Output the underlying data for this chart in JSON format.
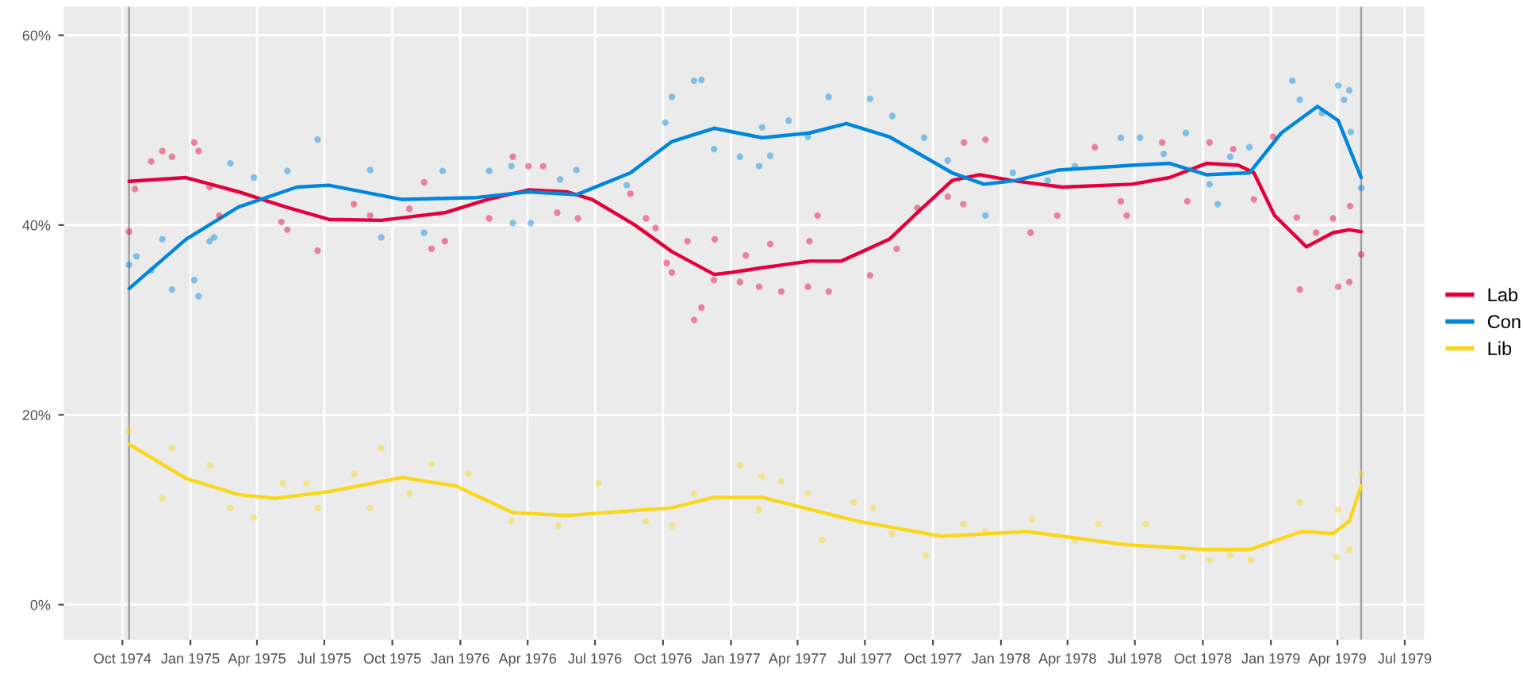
{
  "chart_data": {
    "type": "line",
    "xlim": [
      "1974-07-14",
      "1979-07-27"
    ],
    "xticks": [
      {
        "value": "1974-10-01",
        "label": "Oct 1974"
      },
      {
        "value": "1975-01-01",
        "label": "Jan 1975"
      },
      {
        "value": "1975-04-01",
        "label": "Apr 1975"
      },
      {
        "value": "1975-07-01",
        "label": "Jul 1975"
      },
      {
        "value": "1975-10-01",
        "label": "Oct 1975"
      },
      {
        "value": "1976-01-01",
        "label": "Jan 1976"
      },
      {
        "value": "1976-04-01",
        "label": "Apr 1976"
      },
      {
        "value": "1976-07-01",
        "label": "Jul 1976"
      },
      {
        "value": "1976-10-01",
        "label": "Oct 1976"
      },
      {
        "value": "1977-01-01",
        "label": "Jan 1977"
      },
      {
        "value": "1977-04-01",
        "label": "Apr 1977"
      },
      {
        "value": "1977-07-01",
        "label": "Jul 1977"
      },
      {
        "value": "1977-10-01",
        "label": "Oct 1977"
      },
      {
        "value": "1978-01-01",
        "label": "Jan 1978"
      },
      {
        "value": "1978-04-01",
        "label": "Apr 1978"
      },
      {
        "value": "1978-07-01",
        "label": "Jul 1978"
      },
      {
        "value": "1978-10-01",
        "label": "Oct 1978"
      },
      {
        "value": "1979-01-01",
        "label": "Jan 1979"
      },
      {
        "value": "1979-04-01",
        "label": "Apr 1979"
      },
      {
        "value": "1979-07-01",
        "label": "Jul 1979"
      }
    ],
    "ylim": [
      -3.7,
      63
    ],
    "yticks": [
      {
        "value": 0,
        "label": "0%"
      },
      {
        "value": 20,
        "label": "20%"
      },
      {
        "value": 40,
        "label": "40%"
      },
      {
        "value": 60,
        "label": "60%"
      }
    ],
    "grid": true,
    "legend": "right",
    "ref_lines": [
      {
        "axis": "x",
        "value": "1974-10-10",
        "color": "#a0a0a0"
      },
      {
        "axis": "x",
        "value": "1979-05-03",
        "color": "#a0a0a0"
      }
    ],
    "series": [
      {
        "type": "scatter",
        "marker": "circle",
        "color": "#e4003b",
        "x": [
          "1974-10-10",
          "1974-10-18",
          "1974-11-09",
          "1974-11-24",
          "1974-12-07",
          "1975-01-06",
          "1975-01-12",
          "1975-01-27",
          "1975-02-09",
          "1975-05-04",
          "1975-05-12",
          "1975-06-22",
          "1975-08-10",
          "1975-09-01",
          "1975-10-24",
          "1975-11-13",
          "1975-11-23",
          "1975-12-11",
          "1976-02-09",
          "1976-03-12",
          "1976-04-02",
          "1976-04-22",
          "1976-05-11",
          "1976-06-08",
          "1976-08-18",
          "1976-09-08",
          "1976-09-21",
          "1976-10-06",
          "1976-10-13",
          "1976-11-03",
          "1976-11-12",
          "1976-11-22",
          "1976-12-09",
          "1976-12-10",
          "1977-01-13",
          "1977-01-21",
          "1977-02-08",
          "1977-02-23",
          "1977-03-10",
          "1977-04-15",
          "1977-04-17",
          "1977-04-28",
          "1977-05-13",
          "1977-07-08",
          "1977-08-13",
          "1977-09-10",
          "1977-10-21",
          "1977-11-11",
          "1977-11-12",
          "1977-12-11",
          "1978-02-10",
          "1978-03-18",
          "1978-05-08",
          "1978-06-12",
          "1978-06-20",
          "1978-08-07",
          "1978-09-10",
          "1978-10-10",
          "1978-11-11",
          "1978-12-09",
          "1979-01-04",
          "1979-02-05",
          "1979-02-09",
          "1979-03-03",
          "1979-03-26",
          "1979-04-02",
          "1979-04-17",
          "1979-04-18",
          "1979-05-03"
        ],
        "values": [
          39.3,
          43.8,
          46.7,
          47.8,
          47.2,
          48.7,
          47.8,
          44,
          41,
          40.3,
          39.5,
          37.3,
          42.2,
          41,
          41.7,
          44.5,
          37.5,
          38.3,
          40.7,
          47.2,
          46.2,
          46.2,
          41.3,
          40.7,
          43.3,
          40.7,
          39.7,
          36,
          35,
          38.3,
          30,
          31.3,
          34.2,
          38.5,
          34,
          36.8,
          33.5,
          38,
          33,
          33.5,
          38.3,
          41,
          33,
          34.7,
          37.5,
          41.8,
          43,
          42.2,
          48.7,
          49,
          39.2,
          41,
          48.2,
          42.5,
          41,
          48.7,
          42.5,
          48.7,
          48,
          42.7,
          49.3,
          40.8,
          33.2,
          39.2,
          40.7,
          33.5,
          34,
          42,
          36.9
        ]
      },
      {
        "type": "scatter",
        "marker": "circle",
        "color": "#0087dc",
        "x": [
          "1974-10-10",
          "1974-10-20",
          "1974-11-09",
          "1974-11-24",
          "1974-12-07",
          "1975-01-06",
          "1975-01-12",
          "1975-01-27",
          "1975-02-02",
          "1975-02-24",
          "1975-03-28",
          "1975-05-12",
          "1975-06-22",
          "1975-09-01",
          "1975-09-16",
          "1975-11-13",
          "1975-12-08",
          "1976-02-09",
          "1976-03-10",
          "1976-03-12",
          "1976-04-05",
          "1976-05-15",
          "1976-06-06",
          "1976-08-13",
          "1976-10-04",
          "1976-10-13",
          "1976-11-12",
          "1976-11-22",
          "1976-12-09",
          "1977-01-13",
          "1977-02-08",
          "1977-02-12",
          "1977-02-23",
          "1977-03-20",
          "1977-04-15",
          "1977-05-13",
          "1977-07-08",
          "1977-08-07",
          "1977-09-19",
          "1977-10-21",
          "1977-12-11",
          "1978-01-17",
          "1978-03-05",
          "1978-04-11",
          "1978-06-12",
          "1978-07-08",
          "1978-08-09",
          "1978-09-08",
          "1978-10-10",
          "1978-10-21",
          "1978-11-07",
          "1978-12-03",
          "1979-01-30",
          "1979-02-09",
          "1979-03-11",
          "1979-04-02",
          "1979-04-10",
          "1979-04-17",
          "1979-04-19",
          "1979-05-03"
        ],
        "values": [
          35.8,
          36.7,
          35.2,
          38.5,
          33.2,
          34.2,
          32.5,
          38.3,
          38.7,
          46.5,
          45,
          45.7,
          49,
          45.8,
          38.7,
          39.2,
          45.7,
          45.7,
          46.2,
          40.2,
          40.2,
          44.8,
          45.8,
          44.2,
          50.8,
          53.5,
          55.2,
          55.3,
          48,
          47.2,
          46.2,
          50.3,
          47.3,
          51,
          49.3,
          53.5,
          53.3,
          51.5,
          49.2,
          46.8,
          41,
          45.5,
          44.7,
          46.2,
          49.2,
          49.2,
          47.5,
          49.7,
          44.3,
          42.2,
          47.2,
          48.2,
          55.2,
          53.2,
          51.8,
          54.7,
          53.2,
          54.2,
          49.8,
          43.9
        ]
      },
      {
        "type": "scatter",
        "marker": "circle",
        "color": "#f9d71c",
        "x": [
          "1974-10-10",
          "1974-11-24",
          "1974-12-07",
          "1975-01-27",
          "1975-02-24",
          "1975-03-28",
          "1975-05-06",
          "1975-06-07",
          "1975-06-22",
          "1975-08-10",
          "1975-09-01",
          "1975-09-16",
          "1975-10-24",
          "1975-11-23",
          "1976-01-12",
          "1976-03-10",
          "1976-05-13",
          "1976-07-06",
          "1976-09-08",
          "1976-10-13",
          "1976-11-12",
          "1977-01-13",
          "1977-02-08",
          "1977-02-12",
          "1977-03-10",
          "1977-04-15",
          "1977-05-04",
          "1977-06-16",
          "1977-07-12",
          "1977-08-07",
          "1977-09-21",
          "1977-11-11",
          "1977-12-11",
          "1978-02-12",
          "1978-04-11",
          "1978-05-13",
          "1978-07-16",
          "1978-09-04",
          "1978-10-10",
          "1978-11-07",
          "1978-12-05",
          "1979-02-09",
          "1979-03-31",
          "1979-04-02",
          "1979-04-17",
          "1979-05-03"
        ],
        "values": [
          18.3,
          11.2,
          16.5,
          14.7,
          10.2,
          9.2,
          12.8,
          12.8,
          10.2,
          13.8,
          10.2,
          16.5,
          11.7,
          14.8,
          13.8,
          8.8,
          8.3,
          12.8,
          8.8,
          8.3,
          11.7,
          14.7,
          10,
          13.5,
          13,
          11.7,
          6.8,
          10.8,
          10.2,
          7.5,
          5.2,
          8.5,
          7.7,
          9,
          6.7,
          8.5,
          8.5,
          5,
          4.7,
          5.2,
          4.7,
          10.8,
          5,
          10,
          5.8,
          13.8
        ]
      },
      {
        "name": "Lab",
        "color": "#e4003b",
        "x": [
          "1974-10-10",
          "1974-12-26",
          "1975-03-07",
          "1975-05-10",
          "1975-07-07",
          "1975-09-16",
          "1975-12-11",
          "1976-02-07",
          "1976-04-02",
          "1976-05-24",
          "1976-06-27",
          "1976-08-24",
          "1976-10-13",
          "1976-12-09",
          "1977-01-01",
          "1977-02-12",
          "1977-03-12",
          "1977-04-17",
          "1977-05-30",
          "1977-08-03",
          "1977-09-14",
          "1977-10-27",
          "1977-12-03",
          "1978-01-15",
          "1978-03-25",
          "1978-06-27",
          "1978-08-17",
          "1978-10-06",
          "1978-11-18",
          "1978-12-09",
          "1979-01-06",
          "1979-02-18",
          "1979-03-26",
          "1979-04-17",
          "1979-05-03"
        ],
        "values": [
          44.6,
          45,
          43.5,
          41.9,
          40.6,
          40.5,
          41.3,
          42.7,
          43.7,
          43.5,
          42.7,
          40,
          37.2,
          34.8,
          35,
          35.5,
          35.8,
          36.2,
          36.2,
          38.5,
          41.6,
          44.7,
          45.3,
          44.7,
          44,
          44.3,
          45,
          46.5,
          46.3,
          45.5,
          41,
          37.7,
          39.2,
          39.5,
          39.3
        ]
      },
      {
        "name": "Con",
        "color": "#0087dc",
        "x": [
          "1974-10-10",
          "1974-12-26",
          "1975-03-07",
          "1975-05-25",
          "1975-07-07",
          "1975-10-14",
          "1976-01-23",
          "1976-04-02",
          "1976-06-06",
          "1976-08-18",
          "1976-10-13",
          "1976-12-09",
          "1977-02-12",
          "1977-04-17",
          "1977-06-06",
          "1977-08-03",
          "1977-10-27",
          "1977-12-09",
          "1978-01-21",
          "1978-03-20",
          "1978-06-27",
          "1978-08-17",
          "1978-10-06",
          "1978-12-03",
          "1979-01-15",
          "1979-03-05",
          "1979-04-02",
          "1979-05-03"
        ],
        "values": [
          33.3,
          38.5,
          41.9,
          44,
          44.2,
          42.7,
          42.9,
          43.5,
          43.2,
          45.5,
          48.8,
          50.2,
          49.2,
          49.7,
          50.7,
          49.3,
          45.5,
          44.3,
          44.7,
          45.8,
          46.3,
          46.5,
          45.3,
          45.5,
          49.7,
          52.5,
          51,
          45
        ]
      },
      {
        "name": "Lib",
        "color": "#f9d71c",
        "x": [
          "1974-10-10",
          "1974-12-26",
          "1975-03-07",
          "1975-04-25",
          "1975-07-07",
          "1975-10-14",
          "1975-12-26",
          "1976-03-12",
          "1976-05-24",
          "1976-10-13",
          "1976-12-09",
          "1977-02-12",
          "1977-06-21",
          "1977-10-12",
          "1978-02-05",
          "1978-06-20",
          "1978-10-06",
          "1978-12-03",
          "1979-02-11",
          "1979-03-26",
          "1979-04-17",
          "1979-05-03"
        ],
        "values": [
          16.9,
          13.3,
          11.6,
          11.2,
          11.9,
          13.4,
          12.5,
          9.7,
          9.4,
          10.2,
          11.3,
          11.3,
          8.8,
          7.2,
          7.7,
          6.3,
          5.8,
          5.8,
          7.7,
          7.5,
          8.8,
          12.5
        ]
      }
    ]
  }
}
